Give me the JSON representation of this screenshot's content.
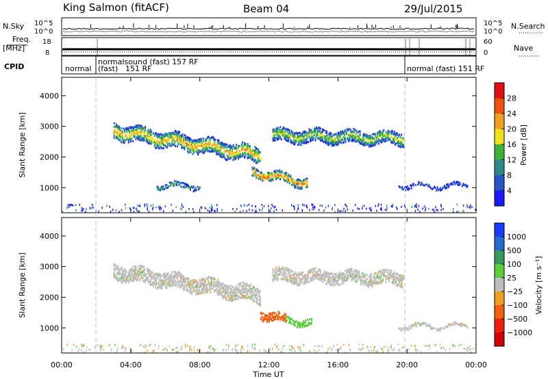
{
  "header": {
    "station": "King Salmon (fitACF)",
    "beam": "Beam 04",
    "date": "29/Jul/2015"
  },
  "summary_panel": {
    "nsky_label": "N.Sky",
    "nsky_ticks": [
      "10^5",
      "10^0"
    ],
    "nsearch_label": "N.Search",
    "nsearch_ticks": [
      "10^5",
      "10^0"
    ],
    "freq_label_line1": "Freq.",
    "freq_label_line2": "[MHz]",
    "freq_ticks": [
      "18",
      "8"
    ],
    "nave_label": "Nave",
    "nave_ticks": [
      "60",
      "0"
    ],
    "cpid_label": "CPID",
    "cpid_segments": [
      {
        "text_1": "normal",
        "text_2": "(fast)",
        "text_3": "151 RF"
      },
      {
        "text_1": "normalsound (fast) 157 RF",
        "text_2": "",
        "text_3": ""
      },
      {
        "text_1": "normal (fast) 151 RF",
        "text_2": "",
        "text_3": ""
      }
    ]
  },
  "chart_data": [
    {
      "type": "heatmap",
      "panel": "power",
      "ylabel": "Slant Range [km]",
      "yticks": [
        "1000",
        "2000",
        "3000",
        "4000"
      ],
      "ylim": [
        180,
        4600
      ],
      "xlim_hours": [
        0,
        24
      ],
      "colorbar_label": "Power [dB]",
      "colorbar_ticks": [
        "4",
        "8",
        "12",
        "16",
        "20",
        "24",
        "28"
      ],
      "colorbar_colors": [
        "#1a1aff",
        "#2855c8",
        "#2e8a8a",
        "#3cb23c",
        "#f0e020",
        "#f0a020",
        "#f05010",
        "#e01010"
      ],
      "scatter_bands": [
        {
          "t_start": 3.0,
          "t_end": 11.5,
          "r_start": 2850,
          "r_end": 2050,
          "width": 500,
          "peak_power": 22
        },
        {
          "t_start": 12.2,
          "t_end": 19.8,
          "r_start": 2700,
          "r_end": 2600,
          "width": 420,
          "peak_power": 18
        },
        {
          "t_start": 11.0,
          "t_end": 14.2,
          "r_start": 1500,
          "r_end": 1150,
          "width": 300,
          "peak_power": 26
        },
        {
          "t_start": 5.5,
          "t_end": 8.0,
          "r_start": 1050,
          "r_end": 1050,
          "width": 160,
          "peak_power": 14
        },
        {
          "t_start": 19.5,
          "t_end": 23.5,
          "r_start": 1050,
          "r_end": 1050,
          "width": 120,
          "peak_power": 8
        }
      ]
    },
    {
      "type": "heatmap",
      "panel": "velocity",
      "ylabel": "Slant Range [km]",
      "yticks": [
        "1000",
        "2000",
        "3000",
        "4000"
      ],
      "ylim": [
        180,
        4600
      ],
      "xlim_hours": [
        0,
        24
      ],
      "colorbar_label": "Velocity [m s⁻¹]",
      "colorbar_ticks": [
        "1000",
        "500",
        "100",
        "25",
        "−25",
        "−100",
        "−500",
        "−1000"
      ],
      "colorbar_colors": [
        "#1a3cff",
        "#2a6ad0",
        "#3a9a5a",
        "#5acc3a",
        "#bebebe",
        "#f0a020",
        "#f06010",
        "#f02010",
        "#d00000"
      ],
      "scatter_bands": [
        {
          "t_start": 3.0,
          "t_end": 11.5,
          "r_start": 2850,
          "r_end": 2050,
          "width": 500,
          "velocity": "ground"
        },
        {
          "t_start": 12.2,
          "t_end": 19.8,
          "r_start": 2700,
          "r_end": 2600,
          "width": 420,
          "velocity": "ground"
        },
        {
          "t_start": 11.5,
          "t_end": 13.0,
          "r_start": 1450,
          "r_end": 1250,
          "width": 280,
          "velocity": -300
        },
        {
          "t_start": 13.0,
          "t_end": 14.5,
          "r_start": 1250,
          "r_end": 1150,
          "width": 220,
          "velocity": 150
        },
        {
          "t_start": 19.5,
          "t_end": 23.5,
          "r_start": 1050,
          "r_end": 1050,
          "width": 120,
          "velocity": "ground"
        }
      ]
    }
  ],
  "x_axis": {
    "label": "Time UT",
    "ticks": [
      "00:00",
      "04:00",
      "08:00",
      "12:00",
      "16:00",
      "20:00",
      "00:00"
    ]
  }
}
